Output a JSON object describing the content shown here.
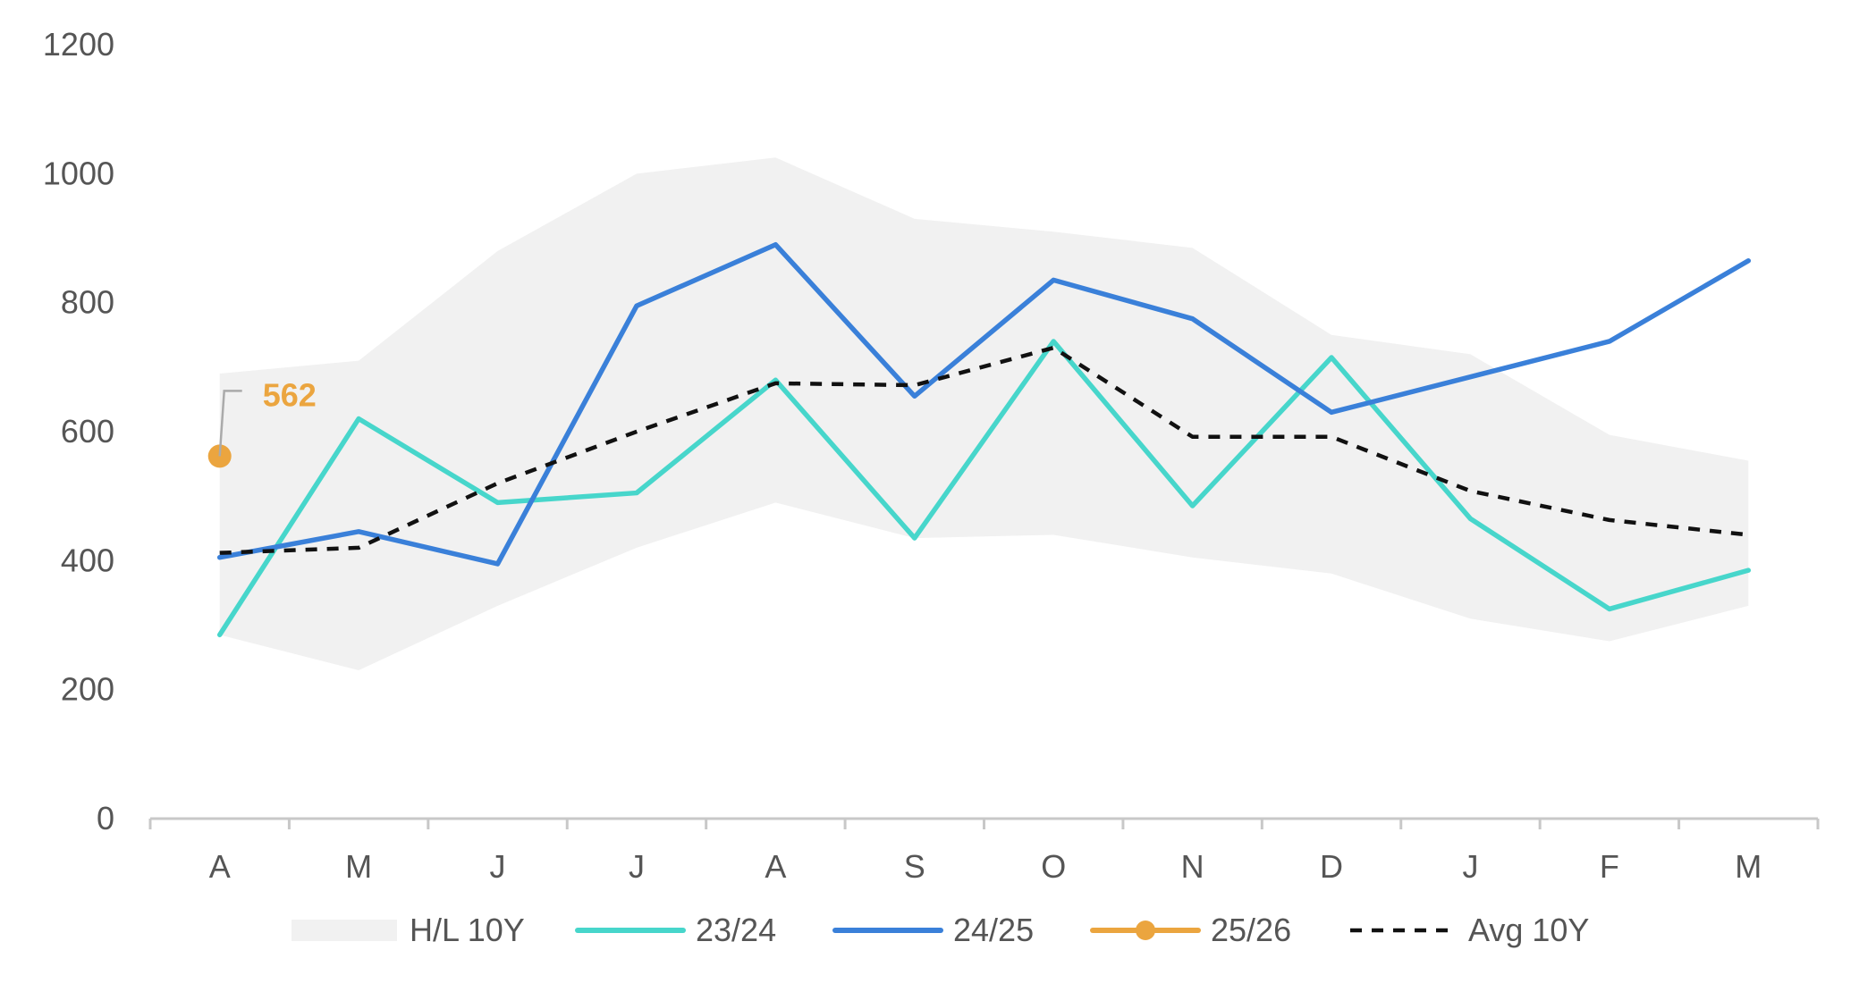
{
  "chart_data": {
    "type": "line",
    "categories": [
      "A",
      "M",
      "J",
      "J",
      "A",
      "S",
      "O",
      "N",
      "D",
      "J",
      "F",
      "M"
    ],
    "ylim": [
      0,
      1200
    ],
    "yticks": [
      0,
      200,
      400,
      600,
      800,
      1000,
      1200
    ],
    "grid": false,
    "legend_position": "bottom",
    "band": {
      "name": "H/L 10Y",
      "high": [
        690,
        710,
        880,
        1000,
        1025,
        930,
        910,
        885,
        750,
        720,
        595,
        555
      ],
      "low": [
        285,
        230,
        330,
        420,
        490,
        435,
        440,
        405,
        380,
        310,
        275,
        330
      ],
      "color": "#f1f1f1"
    },
    "series": [
      {
        "name": "23/24",
        "values": [
          285,
          620,
          490,
          505,
          680,
          435,
          740,
          485,
          715,
          465,
          325,
          385
        ],
        "color": "#47d6cb",
        "style": "solid"
      },
      {
        "name": "24/25",
        "values": [
          405,
          445,
          395,
          795,
          890,
          655,
          835,
          775,
          630,
          685,
          740,
          865
        ],
        "color": "#3a80d9",
        "style": "solid"
      },
      {
        "name": "25/26",
        "values": [
          562,
          null,
          null,
          null,
          null,
          null,
          null,
          null,
          null,
          null,
          null,
          null
        ],
        "color": "#eba53f",
        "style": "marker"
      },
      {
        "name": "Avg 10Y",
        "values": [
          412,
          420,
          520,
          600,
          675,
          672,
          730,
          592,
          592,
          508,
          463,
          440
        ],
        "color": "#111111",
        "style": "dashed"
      }
    ],
    "annotation": {
      "label": "562",
      "series": "25/26",
      "category_index": 0,
      "color": "#eba53f"
    }
  }
}
